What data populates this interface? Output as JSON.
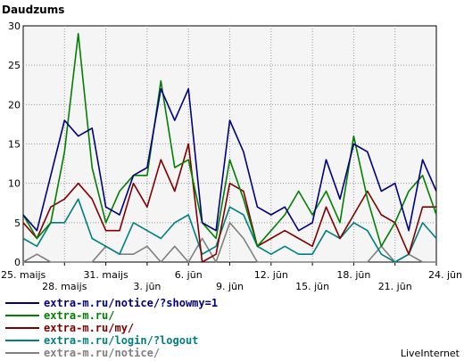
{
  "chart_data": {
    "type": "line",
    "title": "Daudzums",
    "ylim": [
      0,
      30
    ],
    "y_ticks": [
      0,
      5,
      10,
      15,
      20,
      25,
      30
    ],
    "x_tick_labels": [
      {
        "index": 0,
        "label": "25. maijs"
      },
      {
        "index": 3,
        "label": "28. maijs"
      },
      {
        "index": 6,
        "label": "31. maijs"
      },
      {
        "index": 9,
        "label": "3. jūn"
      },
      {
        "index": 12,
        "label": "6. jūn"
      },
      {
        "index": 15,
        "label": "9. jūn"
      },
      {
        "index": 18,
        "label": "12. jūn"
      },
      {
        "index": 21,
        "label": "15. jūn"
      },
      {
        "index": 24,
        "label": "18. jūn"
      },
      {
        "index": 27,
        "label": "21. jūn"
      },
      {
        "index": 30,
        "label": "24. jūn"
      }
    ],
    "grid": true,
    "legend_position": "bottom-left",
    "series": [
      {
        "name": "extra-m.ru/notice/?showmy=1",
        "color": "#000080",
        "values": [
          6,
          4,
          11,
          18,
          16,
          17,
          7,
          6,
          11,
          12,
          22,
          18,
          22,
          5,
          4,
          18,
          14,
          7,
          6,
          7,
          4,
          5,
          13,
          8,
          15,
          14,
          9,
          10,
          4,
          13,
          9
        ]
      },
      {
        "name": "extra-m.ru/",
        "color": "#008000",
        "values": [
          6,
          3,
          5,
          14,
          29,
          12,
          5,
          9,
          11,
          11,
          23,
          12,
          13,
          5,
          3,
          13,
          8,
          2,
          4,
          6,
          9,
          6,
          9,
          5,
          16,
          8,
          2,
          5,
          9,
          11,
          6
        ]
      },
      {
        "name": "extra-m.ru/my/",
        "color": "#800000",
        "values": [
          5,
          3,
          7,
          8,
          10,
          8,
          4,
          4,
          10,
          7,
          13,
          9,
          15,
          0,
          1,
          10,
          9,
          2,
          3,
          4,
          3,
          2,
          7,
          3,
          6,
          9,
          6,
          5,
          1,
          7,
          7
        ]
      },
      {
        "name": "extra-m.ru/login/?logout",
        "color": "#008080",
        "values": [
          3,
          2,
          5,
          5,
          8,
          3,
          2,
          1,
          5,
          4,
          3,
          5,
          6,
          1,
          2,
          7,
          6,
          2,
          1,
          2,
          1,
          1,
          4,
          3,
          5,
          4,
          1,
          0,
          1,
          5,
          3
        ]
      },
      {
        "name": "extra-m.ru/notice/",
        "color": "#808080",
        "values": [
          0,
          1,
          0,
          0,
          0,
          0,
          2,
          1,
          1,
          2,
          0,
          2,
          0,
          3,
          0,
          5,
          3,
          0,
          0,
          0,
          0,
          0,
          0,
          0,
          0,
          0,
          2,
          0,
          1,
          0,
          0
        ]
      }
    ]
  },
  "branding": "LiveInternet"
}
